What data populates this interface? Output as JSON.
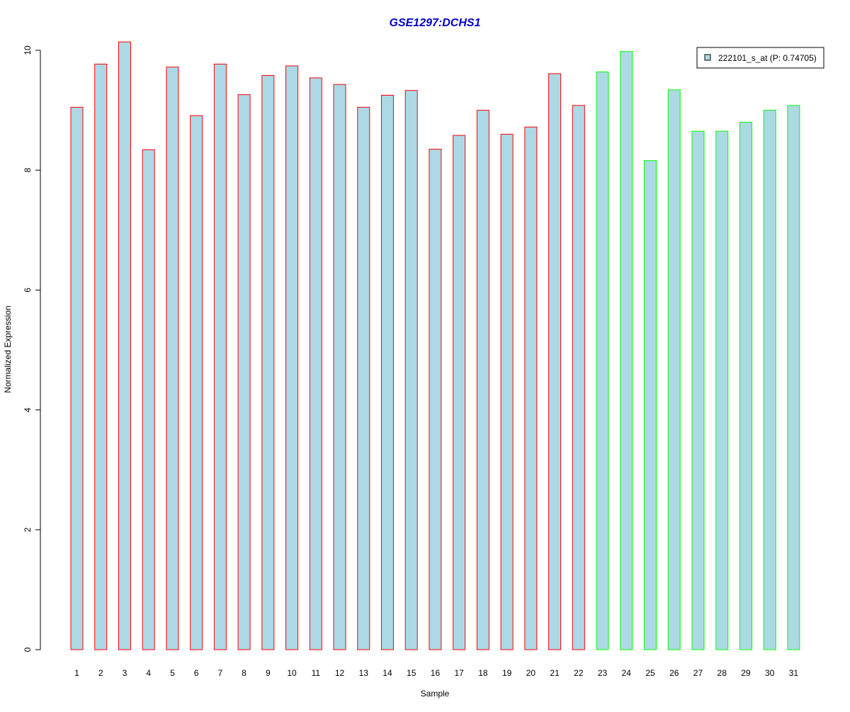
{
  "chart_data": {
    "type": "bar",
    "title": "GSE1297:DCHS1",
    "xlabel": "Sample",
    "ylabel": "Normalized Expression",
    "ylim": [
      0,
      10
    ],
    "yticks": [
      "0",
      "2",
      "4",
      "6",
      "8",
      "10"
    ],
    "grid": false,
    "legend_position": "top-right",
    "legend_label": "222101_s_at (P: 0.74705)",
    "categories": [
      "1",
      "2",
      "3",
      "4",
      "5",
      "6",
      "7",
      "8",
      "9",
      "10",
      "11",
      "12",
      "13",
      "14",
      "15",
      "16",
      "17",
      "18",
      "19",
      "20",
      "21",
      "22",
      "23",
      "24",
      "25",
      "26",
      "27",
      "28",
      "29",
      "30",
      "31"
    ],
    "values": [
      9.05,
      9.77,
      10.14,
      8.34,
      9.72,
      8.91,
      9.77,
      9.26,
      9.58,
      9.74,
      9.54,
      9.43,
      9.05,
      9.25,
      9.33,
      8.35,
      8.58,
      9.0,
      8.6,
      8.72,
      9.61,
      9.08,
      9.64,
      9.98,
      8.16,
      9.34,
      8.65,
      8.65,
      8.8,
      9.0,
      9.08
    ],
    "groups": [
      "red",
      "red",
      "red",
      "red",
      "red",
      "red",
      "red",
      "red",
      "red",
      "red",
      "red",
      "red",
      "red",
      "red",
      "red",
      "red",
      "red",
      "red",
      "red",
      "red",
      "red",
      "red",
      "green",
      "green",
      "green",
      "green",
      "green",
      "green",
      "green",
      "green",
      "green"
    ],
    "colors": {
      "fill": "#add8e6",
      "red": "#ff0000",
      "green": "#00ff00",
      "title": "#0000cc",
      "axis": "#000000"
    }
  }
}
